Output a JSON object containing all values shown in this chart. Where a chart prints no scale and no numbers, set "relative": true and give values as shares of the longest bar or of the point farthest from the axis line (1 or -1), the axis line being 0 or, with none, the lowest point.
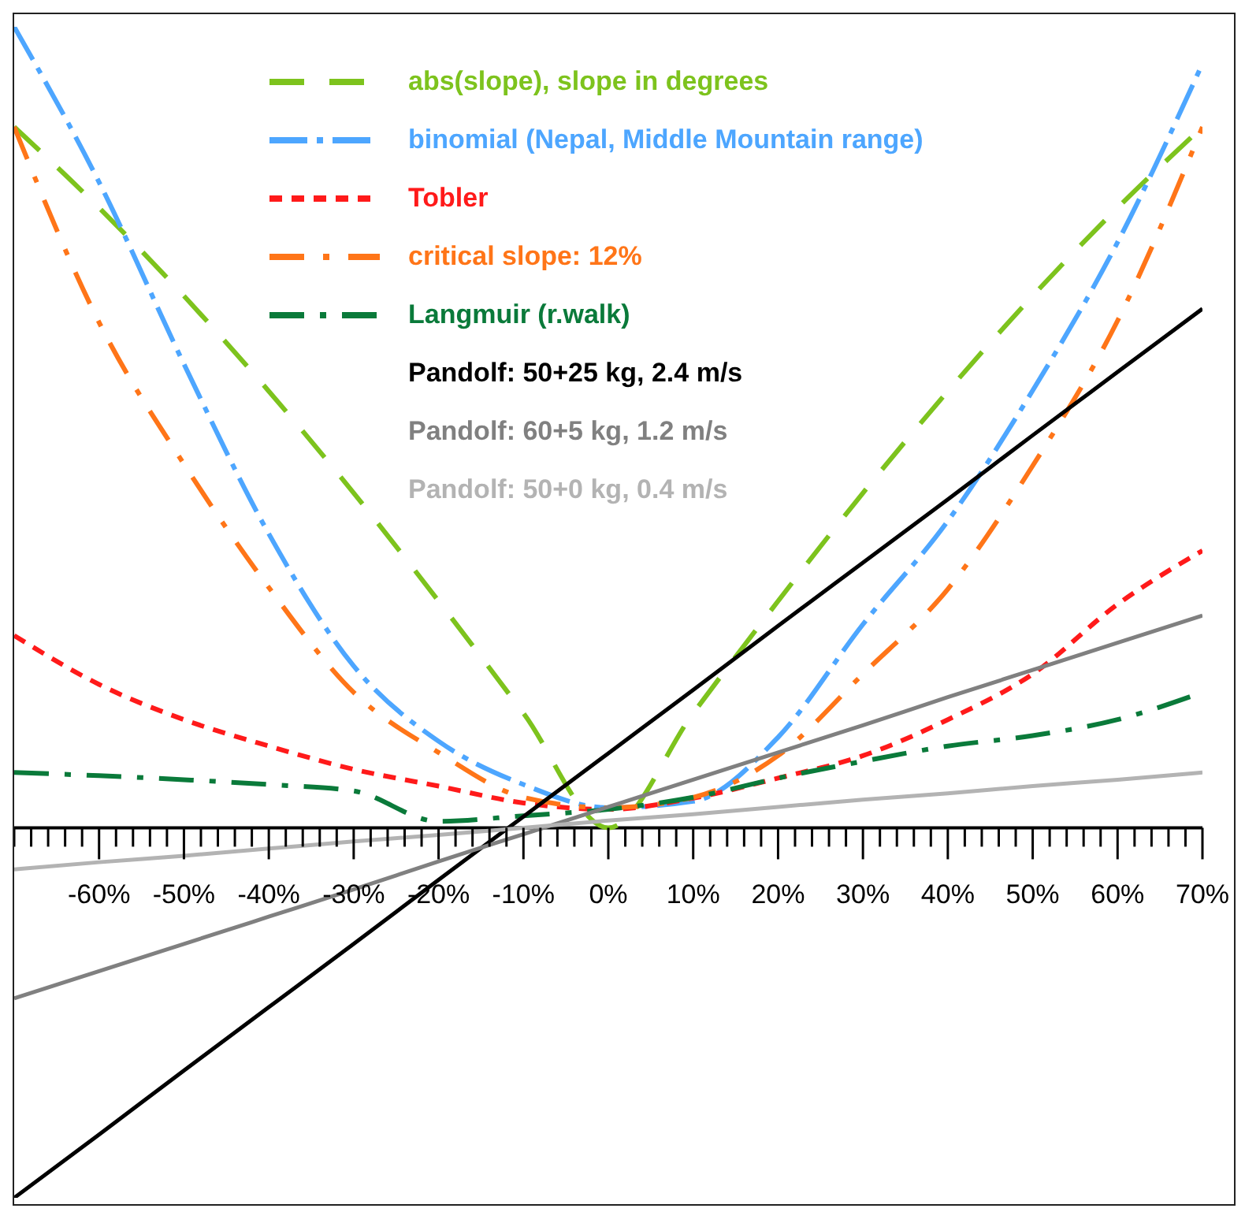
{
  "chart_data": {
    "type": "line",
    "relative": true,
    "legend": "top",
    "grid": false,
    "x": [
      -70,
      -60,
      -50,
      -40,
      -30,
      -20,
      -10,
      0,
      10,
      20,
      30,
      40,
      50,
      60,
      70
    ],
    "xlim": [
      -70,
      70
    ],
    "xticks": [
      {
        "value": -70,
        "label": null
      },
      {
        "value": -68,
        "label": null
      },
      {
        "value": -66,
        "label": null
      },
      {
        "value": -64,
        "label": null
      },
      {
        "value": -62,
        "label": null
      },
      {
        "value": -60,
        "label": "-60%"
      },
      {
        "value": -58,
        "label": null
      },
      {
        "value": -56,
        "label": null
      },
      {
        "value": -54,
        "label": null
      },
      {
        "value": -52,
        "label": null
      },
      {
        "value": -50,
        "label": "-50%"
      },
      {
        "value": -48,
        "label": null
      },
      {
        "value": -46,
        "label": null
      },
      {
        "value": -44,
        "label": null
      },
      {
        "value": -42,
        "label": null
      },
      {
        "value": -40,
        "label": "-40%"
      },
      {
        "value": -38,
        "label": null
      },
      {
        "value": -36,
        "label": null
      },
      {
        "value": -34,
        "label": null
      },
      {
        "value": -32,
        "label": null
      },
      {
        "value": -30,
        "label": "-30%"
      },
      {
        "value": -28,
        "label": null
      },
      {
        "value": -26,
        "label": null
      },
      {
        "value": -24,
        "label": null
      },
      {
        "value": -22,
        "label": null
      },
      {
        "value": -20,
        "label": "-20%"
      },
      {
        "value": -18,
        "label": null
      },
      {
        "value": -16,
        "label": null
      },
      {
        "value": -14,
        "label": null
      },
      {
        "value": -12,
        "label": null
      },
      {
        "value": -10,
        "label": "-10%"
      },
      {
        "value": -8,
        "label": null
      },
      {
        "value": -6,
        "label": null
      },
      {
        "value": -4,
        "label": null
      },
      {
        "value": -2,
        "label": null
      },
      {
        "value": 0,
        "label": "0%"
      },
      {
        "value": 2,
        "label": null
      },
      {
        "value": 4,
        "label": null
      },
      {
        "value": 6,
        "label": null
      },
      {
        "value": 8,
        "label": null
      },
      {
        "value": 10,
        "label": "10%"
      },
      {
        "value": 12,
        "label": null
      },
      {
        "value": 14,
        "label": null
      },
      {
        "value": 16,
        "label": null
      },
      {
        "value": 18,
        "label": null
      },
      {
        "value": 20,
        "label": "20%"
      },
      {
        "value": 22,
        "label": null
      },
      {
        "value": 24,
        "label": null
      },
      {
        "value": 26,
        "label": null
      },
      {
        "value": 28,
        "label": null
      },
      {
        "value": 30,
        "label": "30%"
      },
      {
        "value": 32,
        "label": null
      },
      {
        "value": 34,
        "label": null
      },
      {
        "value": 36,
        "label": null
      },
      {
        "value": 38,
        "label": null
      },
      {
        "value": 40,
        "label": "40%"
      },
      {
        "value": 42,
        "label": null
      },
      {
        "value": 44,
        "label": null
      },
      {
        "value": 46,
        "label": null
      },
      {
        "value": 48,
        "label": null
      },
      {
        "value": 50,
        "label": "50%"
      },
      {
        "value": 52,
        "label": null
      },
      {
        "value": 54,
        "label": null
      },
      {
        "value": 56,
        "label": null
      },
      {
        "value": 58,
        "label": null
      },
      {
        "value": 60,
        "label": "60%"
      },
      {
        "value": 62,
        "label": null
      },
      {
        "value": 64,
        "label": null
      },
      {
        "value": 66,
        "label": null
      },
      {
        "value": 68,
        "label": null
      },
      {
        "value": 70,
        "label": "70%"
      }
    ],
    "series": [
      {
        "name": "abs(slope), slope in degrees",
        "color": "#7dc31d",
        "line_style": "dashed",
        "values": [
          0.875,
          0.774,
          0.664,
          0.545,
          0.418,
          0.283,
          0.143,
          0,
          0.143,
          0.283,
          0.418,
          0.545,
          0.664,
          0.774,
          0.875
        ]
      },
      {
        "name": "binomial (Nepal, Middle Mountain range)",
        "color": "#4da6ff",
        "line_style": "dashed",
        "values": [
          1.0,
          0.806,
          0.579,
          0.367,
          0.202,
          0.108,
          0.054,
          0.025,
          0.033,
          0.113,
          0.254,
          0.383,
          0.546,
          0.731,
          0.954
        ]
      },
      {
        "name": "Tobler",
        "color": "#ff1a1a",
        "line_style": "dashed",
        "values": [
          0.24,
          0.179,
          0.135,
          0.102,
          0.073,
          0.052,
          0.031,
          0.023,
          0.037,
          0.062,
          0.09,
          0.135,
          0.192,
          0.279,
          0.346
        ]
      },
      {
        "name": "critical slope: 12%",
        "color": "#ff7518",
        "line_style": "dashed",
        "values": [
          0.875,
          0.631,
          0.454,
          0.3,
          0.169,
          0.094,
          0.038,
          0.025,
          0.038,
          0.09,
          0.192,
          0.298,
          0.452,
          0.633,
          0.875
        ]
      },
      {
        "name": "Langmuir (r.walk)",
        "color": "#0a7a3a",
        "line_style": "dashed",
        "values": [
          0.069,
          0.065,
          0.06,
          0.054,
          0.046,
          0.008,
          0.015,
          0.023,
          0.038,
          0.062,
          0.083,
          0.102,
          0.115,
          0.135,
          0.169
        ]
      },
      {
        "name": "Pandolf: 50+25 kg, 2.4 m/s",
        "color": "#000000",
        "line_style": "solid",
        "values": [
          -0.462,
          -0.383,
          -0.303,
          -0.224,
          -0.145,
          -0.065,
          0.014,
          0.093,
          0.172,
          0.252,
          0.331,
          0.41,
          0.49,
          0.569,
          0.648
        ]
      },
      {
        "name": "Pandolf: 60+5 kg, 1.2 m/s",
        "color": "#808080",
        "line_style": "solid",
        "values": [
          -0.213,
          -0.179,
          -0.145,
          -0.111,
          -0.077,
          -0.042,
          -0.008,
          0.026,
          0.06,
          0.094,
          0.128,
          0.163,
          0.197,
          0.231,
          0.265
        ]
      },
      {
        "name": "Pandolf: 50+0 kg, 0.4 m/s",
        "color": "#b3b3b3",
        "line_style": "solid",
        "values": [
          -0.052,
          -0.043,
          -0.035,
          -0.026,
          -0.017,
          -0.009,
          0,
          0.009,
          0.017,
          0.026,
          0.035,
          0.043,
          0.052,
          0.06,
          0.069
        ]
      }
    ]
  }
}
